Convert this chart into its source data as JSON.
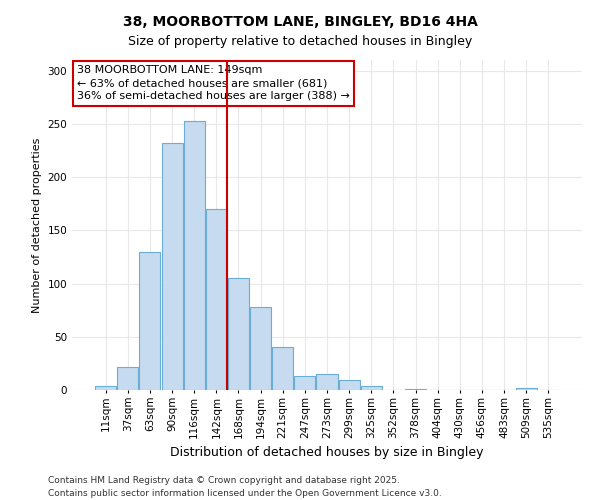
{
  "title": "38, MOORBOTTOM LANE, BINGLEY, BD16 4HA",
  "subtitle": "Size of property relative to detached houses in Bingley",
  "xlabel": "Distribution of detached houses by size in Bingley",
  "ylabel": "Number of detached properties",
  "categories": [
    "11sqm",
    "37sqm",
    "63sqm",
    "90sqm",
    "116sqm",
    "142sqm",
    "168sqm",
    "194sqm",
    "221sqm",
    "247sqm",
    "273sqm",
    "299sqm",
    "325sqm",
    "352sqm",
    "378sqm",
    "404sqm",
    "430sqm",
    "456sqm",
    "483sqm",
    "509sqm",
    "535sqm"
  ],
  "values": [
    4,
    22,
    130,
    232,
    253,
    170,
    105,
    78,
    40,
    13,
    15,
    9,
    4,
    0,
    1,
    0,
    0,
    0,
    0,
    2,
    0
  ],
  "bar_color": "#c6daf0",
  "bar_edge_color": "#6aaed6",
  "fig_background": "#ffffff",
  "plot_background": "#ffffff",
  "grid_color": "#e8e8e8",
  "annotation_box_fill": "#ffffff",
  "annotation_box_edge": "#cc0000",
  "vline_color": "#cc0000",
  "vline_x_index": 5,
  "annotation_title": "38 MOORBOTTOM LANE: 149sqm",
  "annotation_line1": "← 63% of detached houses are smaller (681)",
  "annotation_line2": "36% of semi-detached houses are larger (388) →",
  "footer_line1": "Contains HM Land Registry data © Crown copyright and database right 2025.",
  "footer_line2": "Contains public sector information licensed under the Open Government Licence v3.0.",
  "ylim": [
    0,
    310
  ],
  "yticks": [
    0,
    50,
    100,
    150,
    200,
    250,
    300
  ],
  "title_fontsize": 10,
  "subtitle_fontsize": 9,
  "ylabel_fontsize": 8,
  "xlabel_fontsize": 9,
  "tick_fontsize": 7.5,
  "footer_fontsize": 6.5,
  "annotation_fontsize": 8
}
